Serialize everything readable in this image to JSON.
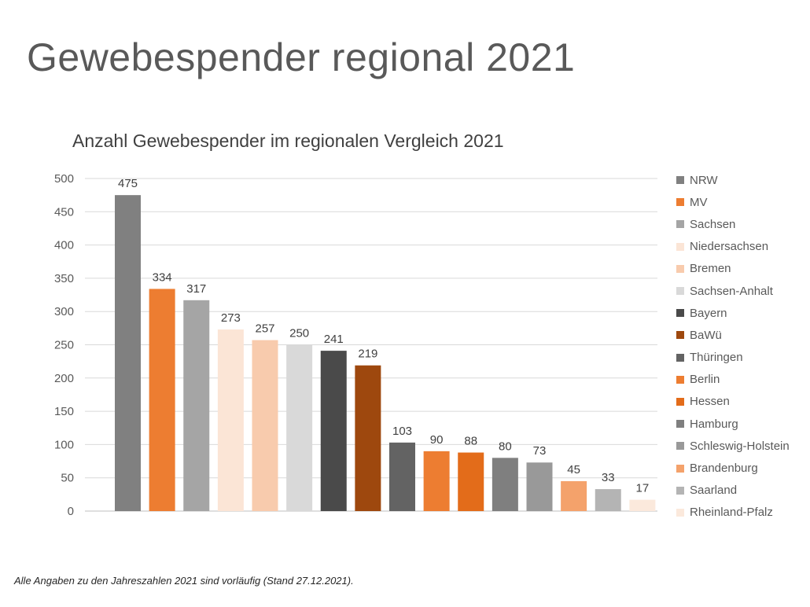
{
  "slide": {
    "title": "Gewebespender regional 2021",
    "footnote": "Alle Angaben zu den Jahreszahlen 2021 sind vorläufig (Stand 27.12.2021)."
  },
  "chart_data": {
    "type": "bar",
    "title": "Anzahl Gewebespender im regionalen Vergleich 2021",
    "xlabel": "",
    "ylabel": "",
    "ylim": [
      0,
      500
    ],
    "yticks": [
      0,
      50,
      100,
      150,
      200,
      250,
      300,
      350,
      400,
      450,
      500
    ],
    "grid": true,
    "legend_position": "right",
    "series": [
      {
        "name": "NRW",
        "value": 475,
        "color": "#808080"
      },
      {
        "name": "MV",
        "value": 334,
        "color": "#ED7D31"
      },
      {
        "name": "Sachsen",
        "value": 317,
        "color": "#A5A5A5"
      },
      {
        "name": "Niedersachsen",
        "value": 273,
        "color": "#FBE5D6"
      },
      {
        "name": "Bremen",
        "value": 257,
        "color": "#F8CBAD"
      },
      {
        "name": "Sachsen-Anhalt",
        "value": 250,
        "color": "#D9D9D9"
      },
      {
        "name": "Bayern",
        "value": 241,
        "color": "#4A4A4A"
      },
      {
        "name": "BaWü",
        "value": 219,
        "color": "#9E480E"
      },
      {
        "name": "Thüringen",
        "value": 103,
        "color": "#636363"
      },
      {
        "name": "Berlin",
        "value": 90,
        "color": "#ED7D31"
      },
      {
        "name": "Hessen",
        "value": 88,
        "color": "#E36C1A"
      },
      {
        "name": "Hamburg",
        "value": 80,
        "color": "#7F7F7F"
      },
      {
        "name": "Schleswig-Holstein",
        "value": 73,
        "color": "#999999"
      },
      {
        "name": "Brandenburg",
        "value": 45,
        "color": "#F4A26B"
      },
      {
        "name": "Saarland",
        "value": 33,
        "color": "#B4B4B4"
      },
      {
        "name": "Rheinland-Pfalz",
        "value": 17,
        "color": "#FBE9DC"
      }
    ]
  }
}
